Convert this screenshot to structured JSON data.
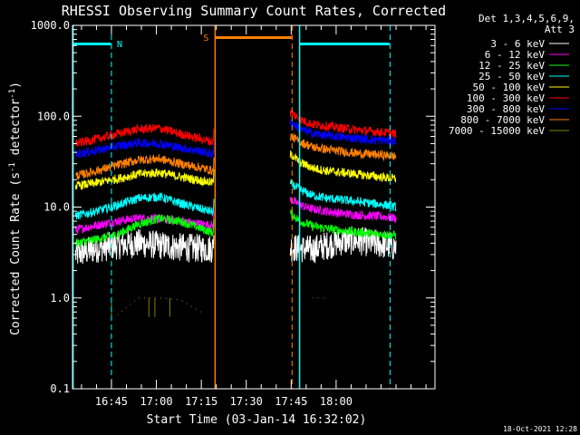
{
  "chart_data": {
    "type": "line",
    "title": "RHESSI Observing Summary Count Rates, Corrected",
    "xlabel": "Start Time (03-Jan-14 16:32:02)",
    "ylabel_main": "Corrected Count Rate (s",
    "ylabel_sup1": "-1",
    "ylabel_mid": " detector",
    "ylabel_sup2": "-1",
    "ylabel_end": ")",
    "yscale": "log",
    "ylim": [
      0.1,
      1000.0
    ],
    "xlim_min_after_1632": [
      0,
      121
    ],
    "y_ticks": [
      "0.1",
      "1.0",
      "10.0",
      "100.0",
      "1000.0"
    ],
    "x_ticks": [
      "16:45",
      "17:00",
      "17:15",
      "17:30",
      "17:45",
      "18:00"
    ],
    "x_tick_minutes": [
      13,
      28,
      43,
      58,
      73,
      88
    ],
    "legend_header_1": "Det 1,3,4,5,6,9,",
    "legend_header_2": "Att 3",
    "legend_placement": "right",
    "timestamp": "18-Oct-2021 12:28",
    "flags": [
      {
        "label": "N",
        "color": "#00ffff"
      },
      {
        "label": "S",
        "color": "#ff8000"
      }
    ],
    "series": [
      {
        "name": "3 - 6 keV",
        "color": "#ffffff",
        "values": [
          3.0,
          3.5,
          3.8,
          4.0,
          3.8,
          3.6,
          3.5,
          3.5,
          3.6,
          3.5,
          3.4,
          3.8,
          4.2,
          4.3,
          4.0,
          3.8,
          3.6
        ]
      },
      {
        "name": "6 - 12 keV",
        "color": "#ff00ff",
        "values": [
          5.6,
          6.3,
          7.0,
          7.6,
          7.4,
          7.0,
          6.5,
          6.3,
          12.0,
          10.5,
          9.5,
          9.0,
          8.5,
          8.2,
          8.0,
          7.8,
          7.5
        ]
      },
      {
        "name": "12 - 25 keV",
        "color": "#00ff00",
        "values": [
          4.0,
          4.4,
          5.0,
          6.5,
          7.5,
          7.0,
          5.8,
          5.2,
          8.5,
          7.0,
          6.2,
          5.8,
          5.5,
          5.3,
          5.1,
          5.0,
          4.9
        ]
      },
      {
        "name": "25 - 50 keV",
        "color": "#00ffff",
        "values": [
          8.0,
          9.0,
          10.5,
          12.5,
          13.0,
          11.0,
          9.5,
          8.8,
          18.0,
          15.5,
          13.5,
          12.5,
          12.0,
          11.5,
          11.0,
          10.5,
          10.0
        ]
      },
      {
        "name": "50 - 100 keV",
        "color": "#ffff00",
        "values": [
          17.0,
          18.5,
          20.5,
          23.0,
          24.0,
          21.5,
          19.5,
          18.5,
          38.0,
          31.0,
          27.0,
          25.0,
          24.0,
          23.0,
          22.0,
          21.0,
          20.5
        ]
      },
      {
        "name": "100 - 300 keV",
        "color": "#ff0000",
        "values": [
          50.0,
          56.0,
          64.0,
          72.0,
          74.0,
          64.0,
          56.0,
          52.0,
          110.0,
          92.0,
          82.0,
          78.0,
          74.0,
          71.0,
          68.0,
          66.0,
          64.0
        ]
      },
      {
        "name": "300 - 800 keV",
        "color": "#0000ff",
        "values": [
          38.0,
          42.0,
          47.0,
          51.0,
          50.0,
          45.0,
          41.0,
          38.0,
          85.0,
          72.0,
          65.0,
          61.0,
          59.0,
          57.0,
          55.0,
          54.0,
          53.0
        ]
      },
      {
        "name": "800 - 7000 keV",
        "color": "#ff8000",
        "values": [
          22.0,
          25.0,
          29.0,
          33.0,
          34.0,
          30.0,
          27.0,
          25.0,
          60.0,
          52.0,
          46.0,
          43.0,
          41.0,
          39.0,
          38.0,
          37.0,
          36.0
        ]
      },
      {
        "name": "7000 - 15000 keV",
        "color": "#808000",
        "values": [
          null,
          null,
          0.65,
          1.0,
          1.0,
          0.95,
          0.7,
          null,
          null,
          null,
          1.0,
          1.0,
          null,
          null,
          null,
          null,
          null
        ]
      }
    ]
  }
}
